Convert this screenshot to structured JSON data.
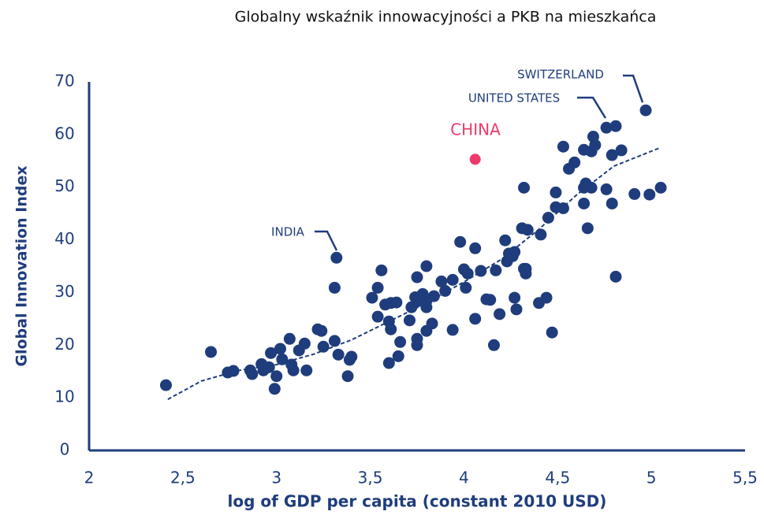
{
  "chart_data": {
    "type": "scatter",
    "title": "Globalny wskaźnik innowacyjności a PKB na mieszkańca",
    "xlabel": "log of GDP per capita (constant 2010 USD)",
    "ylabel": "Global Innovation Index",
    "color": "#1f3d7c",
    "xlim": [
      2,
      5.5
    ],
    "xticks": [
      2,
      {
        "value": 2.5,
        "label": "2,5"
      },
      3,
      {
        "value": 3.5,
        "label": "3,5"
      },
      4,
      {
        "value": 4.5,
        "label": "4,5"
      },
      5,
      {
        "value": 5.5,
        "label": "5,5"
      }
    ],
    "ylim": [
      0,
      70
    ],
    "yticks": [
      0,
      10,
      20,
      30,
      40,
      50,
      60,
      70
    ],
    "x": [
      2.41,
      2.65,
      2.74,
      2.77,
      2.86,
      2.87,
      2.92,
      2.93,
      2.96,
      2.97,
      2.99,
      3.0,
      3.02,
      3.03,
      3.07,
      3.08,
      3.09,
      3.12,
      3.15,
      3.16,
      3.22,
      3.24,
      3.25,
      3.31,
      3.31,
      3.32,
      3.33,
      3.38,
      3.39,
      3.4,
      3.51,
      3.54,
      3.54,
      3.56,
      3.58,
      3.61,
      3.64,
      3.6,
      3.61,
      3.6,
      3.65,
      3.66,
      3.71,
      3.72,
      3.75,
      3.74,
      3.75,
      3.75,
      3.75,
      3.78,
      3.78,
      3.8,
      3.8,
      3.8,
      3.8,
      3.83,
      3.84,
      3.88,
      3.9,
      3.94,
      3.94,
      3.98,
      4.0,
      4.02,
      4.01,
      4.06,
      4.06,
      4.09,
      4.12,
      4.14,
      4.16,
      4.17,
      4.19,
      4.22,
      4.23,
      4.26,
      4.27,
      4.24,
      4.27,
      4.28,
      4.31,
      4.34,
      4.32,
      4.33,
      4.33,
      4.32,
      4.4,
      4.41,
      4.44,
      4.45,
      4.47,
      4.49,
      4.49,
      4.53,
      4.53,
      4.56,
      4.59,
      4.64,
      4.65,
      4.68,
      4.64,
      4.64,
      4.66,
      4.68,
      4.7,
      4.69,
      4.76,
      4.76,
      4.81,
      4.79,
      4.84,
      4.79,
      4.81,
      4.91,
      4.97,
      4.99,
      5.05
    ],
    "y": [
      12.4,
      18.7,
      14.8,
      15.1,
      15.2,
      14.5,
      16.4,
      15.2,
      15.8,
      18.5,
      11.7,
      14.1,
      19.3,
      17.3,
      21.2,
      16.3,
      15.2,
      19.0,
      20.3,
      15.2,
      23.0,
      22.7,
      19.7,
      20.8,
      30.9,
      36.6,
      18.2,
      14.1,
      17.2,
      17.8,
      29.0,
      30.9,
      25.4,
      34.2,
      27.7,
      28.0,
      28.1,
      24.5,
      23.0,
      16.6,
      17.9,
      20.6,
      24.7,
      27.2,
      32.9,
      29.1,
      28.3,
      21.2,
      20.0,
      29.7,
      28.6,
      27.2,
      28.4,
      35.0,
      22.7,
      24.1,
      29.3,
      32.1,
      30.3,
      32.4,
      22.9,
      39.6,
      34.4,
      33.6,
      30.9,
      38.4,
      25.0,
      34.1,
      28.7,
      28.6,
      20.0,
      34.2,
      25.9,
      39.9,
      35.9,
      36.9,
      37.7,
      37.4,
      29.0,
      26.8,
      42.2,
      41.9,
      34.5,
      33.6,
      34.5,
      49.9,
      28.0,
      41.0,
      29.0,
      44.2,
      22.4,
      49.0,
      46.2,
      46.0,
      57.7,
      53.5,
      54.7,
      49.9,
      50.7,
      49.9,
      57.1,
      46.9,
      42.2,
      56.8,
      58.0,
      59.6,
      49.6,
      61.3,
      61.6,
      56.1,
      57.0,
      46.9,
      33.0,
      48.7,
      64.6,
      48.6,
      49.9
    ],
    "highlight": {
      "label": "CHINA",
      "x": 4.06,
      "y": 55.3,
      "color": "#ee3a6b"
    },
    "trend": {
      "x": [
        2.42,
        2.6,
        2.8,
        3.0,
        3.2,
        3.4,
        3.6,
        3.8,
        4.0,
        4.2,
        4.4,
        4.6,
        4.8,
        5.04
      ],
      "y": [
        9.7,
        13.2,
        15.2,
        16.3,
        18.3,
        21.0,
        24.5,
        28.0,
        32.0,
        36.3,
        42.0,
        48.5,
        54.0,
        57.4
      ]
    },
    "annotations": [
      "INDIA",
      "UNITED STATES",
      "SWITZERLAND"
    ]
  }
}
